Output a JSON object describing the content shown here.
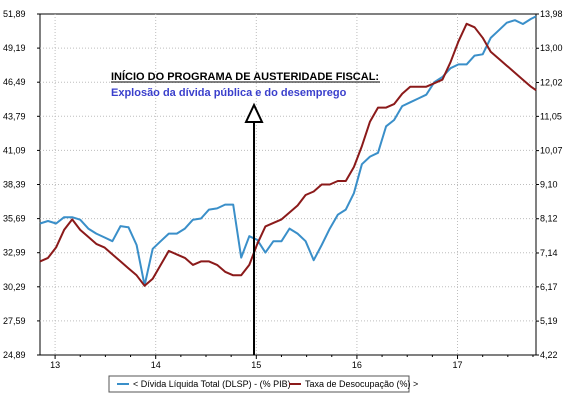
{
  "chart_data": {
    "type": "line",
    "x_ticks": [
      "13",
      "14",
      "15",
      "16",
      "17"
    ],
    "y_left_ticks": [
      "24,89",
      "27,59",
      "30,29",
      "32,99",
      "35,69",
      "38,39",
      "41,09",
      "43,79",
      "46,49",
      "49,19",
      "51,89"
    ],
    "y_right_ticks": [
      "4,22",
      "5,19",
      "6,17",
      "7,14",
      "8,12",
      "9,10",
      "10,07",
      "11,05",
      "12,02",
      "13,00",
      "13,98"
    ],
    "y_left_lim": [
      24.89,
      51.89
    ],
    "y_right_lim": [
      4.22,
      13.98
    ],
    "x_lim": [
      12.85,
      17.78
    ],
    "grid": true,
    "legend_position": "bottom",
    "annotation": {
      "title": "INÍCIO DO PROGRAMA DE AUSTERIDADE FISCAL:",
      "subtitle": "Explosão da dívida pública e do desemprego",
      "x": 15.0
    },
    "series": [
      {
        "name": "< Dívida Líquida Total (DLSP) - (% PIB)",
        "axis": "left",
        "color": "#3a8fc9",
        "x": [
          12.85,
          12.93,
          13.01,
          13.09,
          13.17,
          13.25,
          13.33,
          13.41,
          13.49,
          13.57,
          13.65,
          13.73,
          13.81,
          13.89,
          13.97,
          14.05,
          14.13,
          14.21,
          14.29,
          14.37,
          14.45,
          14.53,
          14.61,
          14.69,
          14.77,
          14.85,
          14.93,
          15.01,
          15.09,
          15.17,
          15.25,
          15.33,
          15.41,
          15.49,
          15.57,
          15.65,
          15.73,
          15.81,
          15.89,
          15.97,
          16.05,
          16.13,
          16.21,
          16.29,
          16.37,
          16.45,
          16.53,
          16.61,
          16.69,
          16.77,
          16.85,
          16.93,
          17.01,
          17.09,
          17.17,
          17.25,
          17.33,
          17.41,
          17.49,
          17.57,
          17.65,
          17.73,
          17.78
        ],
        "values": [
          35.3,
          35.5,
          35.3,
          35.8,
          35.8,
          35.6,
          34.9,
          34.5,
          34.2,
          33.9,
          35.1,
          35.0,
          33.6,
          30.4,
          33.3,
          33.9,
          34.5,
          34.5,
          34.9,
          35.6,
          35.7,
          36.4,
          36.5,
          36.8,
          36.8,
          32.6,
          34.3,
          34.0,
          33.0,
          33.9,
          33.9,
          34.9,
          34.5,
          33.9,
          32.4,
          33.6,
          34.9,
          36.0,
          36.4,
          37.7,
          40.0,
          40.6,
          40.9,
          43.0,
          43.5,
          44.6,
          44.9,
          45.2,
          45.5,
          46.5,
          46.9,
          47.6,
          47.9,
          47.9,
          48.6,
          48.7,
          50.0,
          50.6,
          51.2,
          51.4,
          51.1,
          51.5,
          51.7
        ]
      },
      {
        "name": "Taxa de Desocupação (%) >",
        "axis": "right",
        "color": "#8b1a1a",
        "x": [
          12.85,
          12.93,
          13.01,
          13.09,
          13.17,
          13.25,
          13.33,
          13.41,
          13.49,
          13.57,
          13.65,
          13.73,
          13.81,
          13.89,
          13.97,
          14.05,
          14.13,
          14.21,
          14.29,
          14.37,
          14.45,
          14.53,
          14.61,
          14.69,
          14.77,
          14.85,
          14.93,
          15.01,
          15.09,
          15.17,
          15.25,
          15.33,
          15.41,
          15.49,
          15.57,
          15.65,
          15.73,
          15.81,
          15.89,
          15.97,
          16.05,
          16.13,
          16.21,
          16.29,
          16.37,
          16.45,
          16.53,
          16.61,
          16.69,
          16.77,
          16.85,
          16.93,
          17.01,
          17.09,
          17.17,
          17.25,
          17.33,
          17.41,
          17.49,
          17.57,
          17.65,
          17.73,
          17.78
        ],
        "values": [
          6.9,
          7.0,
          7.3,
          7.8,
          8.1,
          7.8,
          7.6,
          7.4,
          7.3,
          7.1,
          6.9,
          6.7,
          6.5,
          6.2,
          6.4,
          6.8,
          7.2,
          7.1,
          7.0,
          6.8,
          6.9,
          6.9,
          6.8,
          6.6,
          6.5,
          6.5,
          6.8,
          7.4,
          7.9,
          8.0,
          8.1,
          8.3,
          8.5,
          8.8,
          8.9,
          9.1,
          9.1,
          9.2,
          9.2,
          9.6,
          10.2,
          10.9,
          11.3,
          11.3,
          11.4,
          11.7,
          11.9,
          11.9,
          11.9,
          12.0,
          12.1,
          12.6,
          13.2,
          13.7,
          13.6,
          13.3,
          12.9,
          12.7,
          12.5,
          12.3,
          12.1,
          11.9,
          11.8
        ]
      }
    ]
  }
}
